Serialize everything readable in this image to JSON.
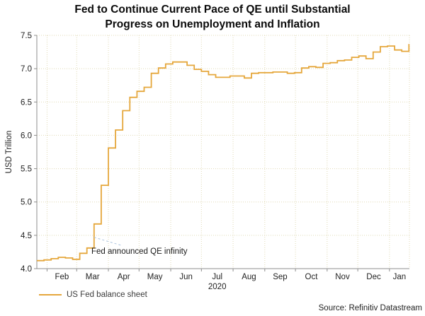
{
  "header": {
    "title_line1": "Fed to Continue Current Pace of QE until Substantial",
    "title_line2": "Progress on Unemployment and Inflation"
  },
  "footer": {
    "source": "Source: Refinitiv Datastream"
  },
  "colors": {
    "grid": "#E0DAB6",
    "axis": "#8C8C8C",
    "tick_text": "#222222",
    "leader": "#A9C2DE",
    "line": "#E5A73C"
  },
  "chart_data": {
    "type": "line",
    "title": "Fed to Continue Current Pace of QE until Substantial Progress on Unemployment and Inflation",
    "xlabel": "",
    "ylabel": "USD Trillion",
    "ylim": [
      4.0,
      7.5
    ],
    "y_ticks": [
      4.0,
      4.5,
      5.0,
      5.5,
      6.0,
      6.5,
      7.0,
      7.5
    ],
    "grid": true,
    "legend_position": "bottom-left",
    "x_axis": {
      "domain": [
        0,
        364.5
      ],
      "month_tick_days": [
        10,
        39,
        70,
        100,
        131,
        161,
        192,
        223,
        253,
        284,
        314,
        345
      ],
      "month_labels": [
        "Feb",
        "Mar",
        "Apr",
        "May",
        "Jun",
        "Jul",
        "Aug",
        "Sep",
        "Oct",
        "Nov",
        "Dec",
        "Jan"
      ],
      "year_label": "2020",
      "year_label_under": "Jul"
    },
    "series": [
      {
        "name": "US Fed balance sheet",
        "color": "#E5A73C",
        "interpolation": "step-after",
        "points": [
          [
            0,
            4.12
          ],
          [
            7,
            4.13
          ],
          [
            14,
            4.15
          ],
          [
            21,
            4.17
          ],
          [
            28,
            4.16
          ],
          [
            35,
            4.14
          ],
          [
            42,
            4.23
          ],
          [
            49,
            4.31
          ],
          [
            56,
            4.67
          ],
          [
            63,
            5.25
          ],
          [
            70,
            5.81
          ],
          [
            77,
            6.08
          ],
          [
            84,
            6.37
          ],
          [
            91,
            6.57
          ],
          [
            98,
            6.66
          ],
          [
            105,
            6.72
          ],
          [
            112,
            6.93
          ],
          [
            119,
            7.01
          ],
          [
            126,
            7.07
          ],
          [
            133,
            7.1
          ],
          [
            140,
            7.1
          ],
          [
            147,
            7.05
          ],
          [
            154,
            6.99
          ],
          [
            161,
            6.96
          ],
          [
            168,
            6.91
          ],
          [
            175,
            6.87
          ],
          [
            182,
            6.87
          ],
          [
            189,
            6.89
          ],
          [
            196,
            6.89
          ],
          [
            203,
            6.86
          ],
          [
            210,
            6.93
          ],
          [
            217,
            6.94
          ],
          [
            224,
            6.94
          ],
          [
            231,
            6.95
          ],
          [
            238,
            6.95
          ],
          [
            245,
            6.93
          ],
          [
            252,
            6.94
          ],
          [
            259,
            7.01
          ],
          [
            266,
            7.03
          ],
          [
            273,
            7.02
          ],
          [
            280,
            7.08
          ],
          [
            287,
            7.09
          ],
          [
            294,
            7.12
          ],
          [
            301,
            7.13
          ],
          [
            308,
            7.17
          ],
          [
            315,
            7.19
          ],
          [
            322,
            7.15
          ],
          [
            329,
            7.25
          ],
          [
            336,
            7.33
          ],
          [
            343,
            7.34
          ],
          [
            350,
            7.28
          ],
          [
            357,
            7.26
          ],
          [
            364,
            7.36
          ]
        ]
      }
    ],
    "annotation": {
      "text": "Fed announced QE infinity",
      "anchor_day": 56,
      "anchor_value": 4.47
    }
  }
}
